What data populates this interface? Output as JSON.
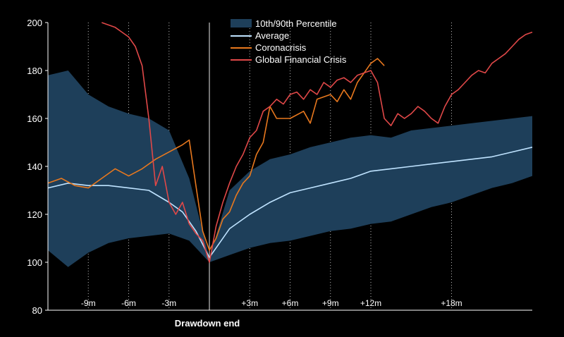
{
  "chart_data": {
    "type": "line",
    "xlabel": "Drawdown end",
    "ylabel": "",
    "xlim": [
      -12,
      24
    ],
    "ylim": [
      80,
      200
    ],
    "yticks": [
      80,
      100,
      120,
      140,
      160,
      180,
      200
    ],
    "x_markers": [
      {
        "x": -9,
        "label": "-9m"
      },
      {
        "x": -6,
        "label": "-6m"
      },
      {
        "x": -3,
        "label": "-3m"
      },
      {
        "x": 3,
        "label": "+3m"
      },
      {
        "x": 6,
        "label": "+6m"
      },
      {
        "x": 9,
        "label": "+9m"
      },
      {
        "x": 12,
        "label": "+12m"
      },
      {
        "x": 18,
        "label": "+18m"
      }
    ],
    "drawdown_end_x": 0,
    "grid": "vertical dotted lines at month markers",
    "legend_position": "top-center",
    "legend": [
      "10th/90th Percentile",
      "Average",
      "Coronacrisis",
      "Global Financial Crisis"
    ],
    "band": {
      "name": "10th/90th Percentile",
      "color": "#1e3f5a",
      "x": [
        -12,
        -10.5,
        -9,
        -7.5,
        -6,
        -4.5,
        -3,
        -1.5,
        0,
        1.5,
        3,
        4.5,
        6,
        7.5,
        9,
        10.5,
        12,
        13.5,
        15,
        16.5,
        18,
        19.5,
        21,
        22.5,
        24
      ],
      "upper": [
        178,
        180,
        170,
        165,
        162,
        160,
        155,
        135,
        102,
        130,
        138,
        143,
        145,
        148,
        150,
        152,
        153,
        152,
        155,
        156,
        157,
        158,
        159,
        160,
        161
      ],
      "lower": [
        105,
        98,
        104,
        108,
        110,
        111,
        112,
        109,
        100,
        103,
        106,
        108,
        109,
        111,
        113,
        114,
        116,
        117,
        120,
        123,
        125,
        128,
        131,
        133,
        136
      ]
    },
    "series": [
      {
        "name": "Average",
        "color": "#bfe3ff",
        "x": [
          -12,
          -10.5,
          -9,
          -7.5,
          -6,
          -4.5,
          -3,
          -2,
          -1,
          0,
          1.5,
          3,
          4.5,
          6,
          7.5,
          9,
          10.5,
          12,
          13.5,
          15,
          16.5,
          18,
          19.5,
          21,
          22.5,
          24
        ],
        "y": [
          131,
          133,
          132,
          132,
          131,
          130,
          125,
          121,
          113,
          102,
          114,
          120,
          125,
          129,
          131,
          133,
          135,
          138,
          139,
          140,
          141,
          142,
          143,
          144,
          146,
          148
        ]
      },
      {
        "name": "Coronacrisis",
        "color": "#e8781e",
        "x": [
          -12,
          -11,
          -10,
          -9,
          -8,
          -7,
          -6,
          -5,
          -4,
          -3,
          -2,
          -1.5,
          -1,
          -0.5,
          0,
          0.5,
          1,
          1.5,
          2,
          2.5,
          3,
          3.5,
          4,
          4.5,
          5,
          6,
          7,
          7.5,
          8,
          9,
          9.5,
          10,
          10.5,
          11,
          11.5,
          12,
          12.5,
          13
        ],
        "y": [
          133,
          135,
          132,
          131,
          135,
          139,
          136,
          139,
          143,
          146,
          149,
          151,
          132,
          113,
          105,
          110,
          118,
          121,
          128,
          133,
          136,
          145,
          150,
          165,
          160,
          160,
          163,
          158,
          168,
          170,
          167,
          172,
          168,
          175,
          179,
          183,
          185,
          182
        ]
      },
      {
        "name": "Global Financial Crisis",
        "color": "#e04848",
        "x": [
          -8,
          -7,
          -6.5,
          -6,
          -5.5,
          -5,
          -4.5,
          -4,
          -3.5,
          -3,
          -2.5,
          -2,
          -1.5,
          -1,
          -0.5,
          0,
          0.5,
          1,
          1.5,
          2,
          2.5,
          3,
          3.5,
          4,
          4.5,
          5,
          5.5,
          6,
          6.5,
          7,
          7.5,
          8,
          8.5,
          9,
          9.5,
          10,
          10.5,
          11,
          11.5,
          12,
          12.5,
          13,
          13.5,
          14,
          14.5,
          15,
          15.5,
          16,
          16.5,
          17,
          17.5,
          18,
          18.5,
          19,
          19.5,
          20,
          20.5,
          21,
          21.5,
          22,
          22.5,
          23,
          23.5,
          24
        ],
        "y": [
          200,
          198,
          196,
          194,
          190,
          182,
          160,
          132,
          140,
          125,
          120,
          125,
          116,
          112,
          109,
          100,
          115,
          125,
          133,
          140,
          145,
          152,
          155,
          163,
          165,
          168,
          166,
          170,
          171,
          168,
          172,
          170,
          175,
          173,
          176,
          177,
          175,
          178,
          179,
          180,
          175,
          160,
          157,
          162,
          160,
          162,
          165,
          163,
          160,
          158,
          165,
          170,
          172,
          175,
          178,
          180,
          179,
          183,
          185,
          187,
          190,
          193,
          195,
          196
        ]
      }
    ]
  }
}
